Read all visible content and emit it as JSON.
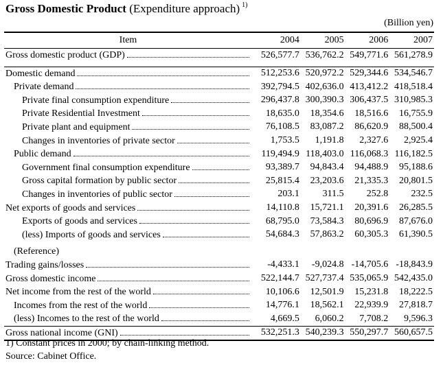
{
  "title": {
    "bold": "Gross Domestic Product",
    "rest": "(Expenditure approach)",
    "note_mark": "1)"
  },
  "unit": "(Billion yen)",
  "header": {
    "item": "Item",
    "years": [
      "2004",
      "2005",
      "2006",
      "2007"
    ]
  },
  "rows": [
    {
      "label": "Gross domestic product (GDP)",
      "level": 0,
      "dots": true,
      "values": [
        "526,577.7",
        "536,762.2",
        "549,771.6",
        "561,278.9"
      ]
    },
    {
      "gap": true
    },
    {
      "label": "Domestic demand",
      "level": 0,
      "dots": true,
      "values": [
        "512,253.6",
        "520,972.2",
        "529,344.6",
        "534,546.7"
      ],
      "sectop": true
    },
    {
      "label": "Private demand",
      "level": 1,
      "dots": true,
      "values": [
        "392,794.5",
        "402,636.0",
        "413,412.2",
        "418,518.4"
      ]
    },
    {
      "label": "Private final consumption expenditure",
      "level": 2,
      "dots": true,
      "values": [
        "296,437.8",
        "300,390.3",
        "306,437.5",
        "310,985.3"
      ]
    },
    {
      "label": "Private Residential Investment",
      "level": 2,
      "dots": true,
      "values": [
        "18,635.0",
        "18,354.6",
        "18,516.6",
        "16,755.9"
      ]
    },
    {
      "label": "Private plant and equipment",
      "level": 2,
      "dots": true,
      "values": [
        "76,108.5",
        "83,087.2",
        "86,620.9",
        "88,500.4"
      ]
    },
    {
      "label": "Changes in inventories of private sector",
      "level": 2,
      "dots": true,
      "values": [
        "1,753.5",
        "1,191.8",
        "2,327.6",
        "2,925.4"
      ]
    },
    {
      "label": "Public demand",
      "level": 1,
      "dots": true,
      "values": [
        "119,494.9",
        "118,403.0",
        "116,068.3",
        "116,182.5"
      ]
    },
    {
      "label": "Government final consumption expenditure",
      "level": 2,
      "dots": true,
      "values": [
        "93,389.7",
        "94,843.4",
        "94,488.9",
        "95,188.6"
      ]
    },
    {
      "label": "Gross capital formation by public sector",
      "level": 2,
      "dots": true,
      "values": [
        "25,815.4",
        "23,203.6",
        "21,335.3",
        "20,801.5"
      ]
    },
    {
      "label": "Changes in inventories of public sector",
      "level": 2,
      "dots": true,
      "values": [
        "203.1",
        "311.5",
        "252.8",
        "232.5"
      ]
    },
    {
      "label": "Net exports of goods and services",
      "level": 0,
      "dots": true,
      "values": [
        "14,110.8",
        "15,721.1",
        "20,391.6",
        "26,285.5"
      ]
    },
    {
      "label": "Exports of goods and services",
      "level": 2,
      "dots": true,
      "values": [
        "68,795.0",
        "73,584.3",
        "80,696.9",
        "87,676.0"
      ]
    },
    {
      "label": "(less) Imports of goods and services",
      "level": 2,
      "dots": true,
      "values": [
        "54,684.3",
        "57,863.2",
        "60,305.3",
        "61,390.5"
      ]
    },
    {
      "gap": true
    },
    {
      "label": "(Reference)",
      "level": 1,
      "dots": false,
      "values": [
        "",
        "",
        "",
        ""
      ]
    },
    {
      "label": "Trading gains/losses",
      "level": 0,
      "dots": true,
      "values": [
        "-4,433.1",
        "-9,024.8",
        "-14,705.6",
        "-18,843.9"
      ]
    },
    {
      "label": "Gross domestic income",
      "level": 0,
      "dots": true,
      "values": [
        "522,144.7",
        "527,737.4",
        "535,065.9",
        "542,435.0"
      ]
    },
    {
      "label": "Net income from the rest of the world",
      "level": 0,
      "dots": true,
      "values": [
        "10,106.6",
        "12,501.9",
        "15,231.8",
        "18,222.5"
      ]
    },
    {
      "label": "Incomes from the rest of the world",
      "level": 1,
      "dots": true,
      "values": [
        "14,776.1",
        "18,562.1",
        "22,939.9",
        "27,818.7"
      ]
    },
    {
      "label": "(less) Incomes to the rest of the world",
      "level": 1,
      "dots": true,
      "values": [
        "4,669.5",
        "6,060.2",
        "7,708.2",
        "9,596.3"
      ]
    },
    {
      "label": "Gross national income (GNI)",
      "level": 0,
      "dots": true,
      "values": [
        "532,251.3",
        "540,239.3",
        "550,297.7",
        "560,657.5"
      ],
      "sectop": true,
      "last": true
    }
  ],
  "footnotes": [
    "1) Constant prices in 2000;  by chain-linking method.",
    "Source:  Cabinet Office."
  ]
}
